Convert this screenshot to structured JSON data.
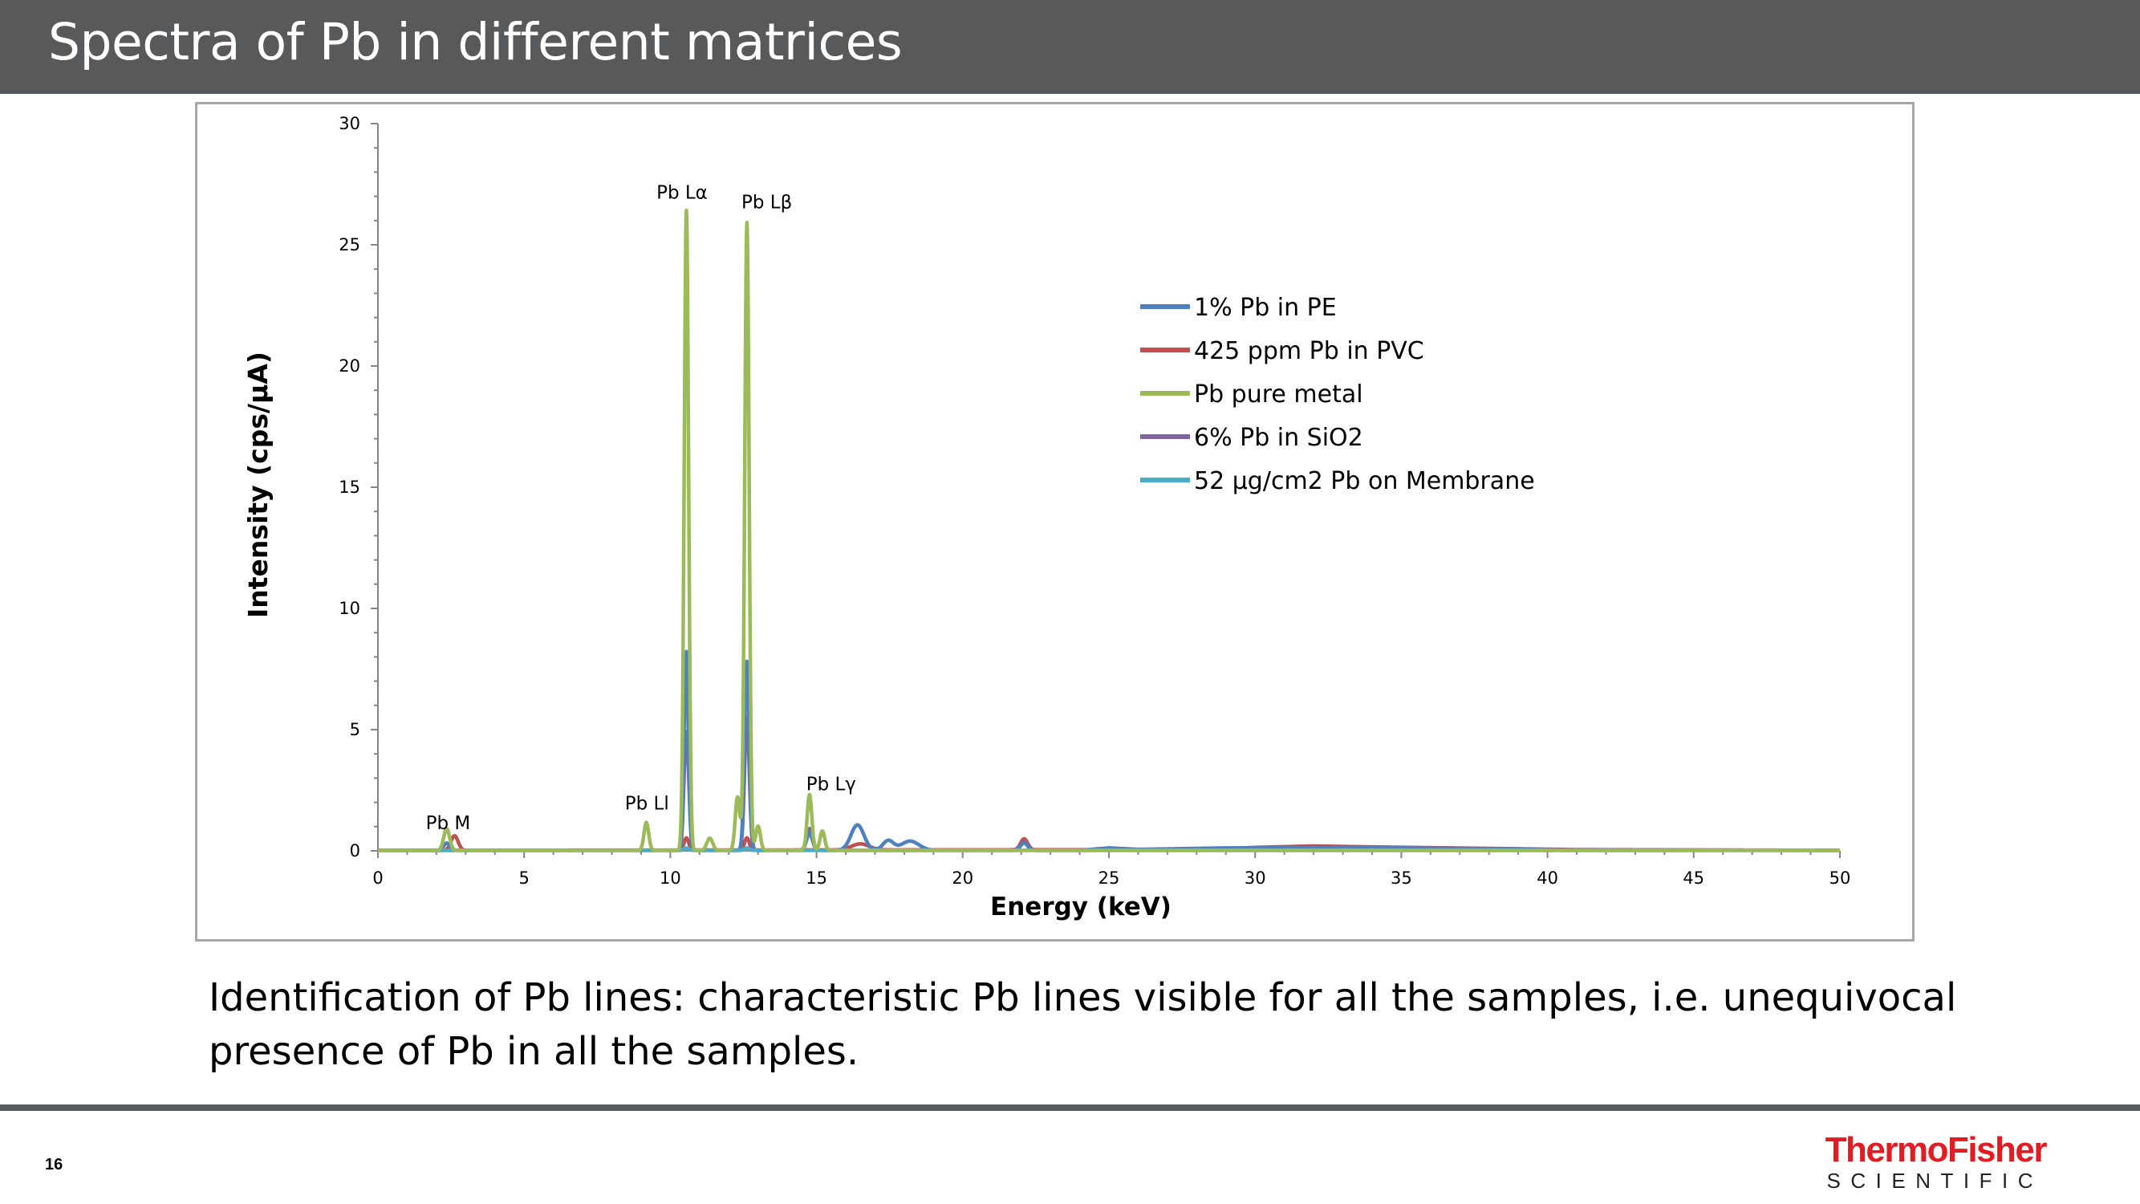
{
  "slide": {
    "title": "Spectra of Pb in different matrices",
    "caption": "Identification of Pb lines: characteristic Pb lines visible for all the samples, i.e. unequivocal presence of Pb in all the samples.",
    "page_number": "16"
  },
  "logo": {
    "line1": "ThermoFisher",
    "line2": "SCIENTIFIC",
    "color": "#e31b23"
  },
  "chart_data": {
    "type": "line",
    "xlabel": "Energy (keV)",
    "ylabel": "Intensity (cps/μA)",
    "xlim": [
      0,
      50
    ],
    "ylim": [
      0,
      30
    ],
    "x_ticks": [
      "0",
      "5",
      "10",
      "15",
      "20",
      "25",
      "30",
      "35",
      "40",
      "45",
      "50"
    ],
    "y_ticks": [
      "0",
      "5",
      "10",
      "15",
      "20",
      "25",
      "30"
    ],
    "legend_position": "upper-right",
    "grid": false,
    "annotations": [
      {
        "text": "Pb M",
        "x": 2.4,
        "y": 0.9
      },
      {
        "text": "Pb Ll",
        "x": 9.2,
        "y": 1.7
      },
      {
        "text": "Pb Lα",
        "x": 10.4,
        "y": 26.9
      },
      {
        "text": "Pb Lβ",
        "x": 13.3,
        "y": 26.5
      },
      {
        "text": "Pb Lγ",
        "x": 15.5,
        "y": 2.5
      }
    ],
    "series": [
      {
        "name": "1% Pb in PE",
        "color": "#4f81bd",
        "baseline": [
          [
            0,
            0.02
          ],
          [
            24,
            0.02
          ],
          [
            25,
            0.12
          ],
          [
            26,
            0.06
          ],
          [
            29,
            0.12
          ],
          [
            35,
            0.12
          ],
          [
            39,
            0.08
          ],
          [
            40,
            0.04
          ],
          [
            50,
            0.02
          ]
        ],
        "peaks": [
          {
            "center": 2.35,
            "height": 0.3,
            "width": 0.1
          },
          {
            "center": 10.55,
            "height": 8.2,
            "width": 0.07
          },
          {
            "center": 12.62,
            "height": 7.8,
            "width": 0.08
          },
          {
            "center": 14.76,
            "height": 0.7,
            "width": 0.1
          },
          {
            "center": 16.4,
            "height": 1.05,
            "width": 0.22
          },
          {
            "center": 17.45,
            "height": 0.4,
            "width": 0.18
          },
          {
            "center": 18.2,
            "height": 0.38,
            "width": 0.3
          },
          {
            "center": 22.1,
            "height": 0.3,
            "width": 0.12
          }
        ]
      },
      {
        "name": "425 ppm Pb in PVC",
        "color": "#c0504d",
        "baseline": [
          [
            0,
            0.02
          ],
          [
            28,
            0.05
          ],
          [
            30,
            0.14
          ],
          [
            32,
            0.2
          ],
          [
            34,
            0.16
          ],
          [
            38,
            0.1
          ],
          [
            41,
            0.05
          ],
          [
            50,
            0.02
          ]
        ],
        "peaks": [
          {
            "center": 2.62,
            "height": 0.6,
            "width": 0.12
          },
          {
            "center": 10.55,
            "height": 0.5,
            "width": 0.08
          },
          {
            "center": 12.62,
            "height": 0.5,
            "width": 0.08
          },
          {
            "center": 16.5,
            "height": 0.25,
            "width": 0.3
          },
          {
            "center": 22.1,
            "height": 0.45,
            "width": 0.12
          }
        ]
      },
      {
        "name": "Pb pure metal",
        "color": "#9bbb59",
        "baseline": [
          [
            0,
            0.02
          ],
          [
            50,
            0.02
          ]
        ],
        "peaks": [
          {
            "center": 2.35,
            "height": 0.9,
            "width": 0.1
          },
          {
            "center": 9.18,
            "height": 1.15,
            "width": 0.08
          },
          {
            "center": 10.55,
            "height": 26.4,
            "width": 0.075
          },
          {
            "center": 11.35,
            "height": 0.5,
            "width": 0.1
          },
          {
            "center": 12.3,
            "height": 2.2,
            "width": 0.08
          },
          {
            "center": 12.62,
            "height": 25.9,
            "width": 0.075
          },
          {
            "center": 13.0,
            "height": 1.0,
            "width": 0.08
          },
          {
            "center": 14.76,
            "height": 2.3,
            "width": 0.08
          },
          {
            "center": 15.2,
            "height": 0.8,
            "width": 0.08
          }
        ]
      },
      {
        "name": "6% Pb in SiO2",
        "color": "#8064a2",
        "baseline": [
          [
            0,
            0.02
          ],
          [
            50,
            0.02
          ]
        ],
        "peaks": [
          {
            "center": 10.55,
            "height": 4.9,
            "width": 0.08
          },
          {
            "center": 12.62,
            "height": 5.5,
            "width": 0.08
          },
          {
            "center": 14.76,
            "height": 0.9,
            "width": 0.1
          },
          {
            "center": 22.1,
            "height": 0.35,
            "width": 0.12
          }
        ]
      },
      {
        "name": "52 μg/cm2 Pb on Membrane",
        "color": "#4bacc6",
        "baseline": [
          [
            0,
            0.02
          ],
          [
            50,
            0.02
          ]
        ],
        "peaks": [
          {
            "center": 10.55,
            "height": 0.1,
            "width": 0.08
          },
          {
            "center": 12.62,
            "height": 0.1,
            "width": 0.08
          }
        ]
      }
    ]
  }
}
